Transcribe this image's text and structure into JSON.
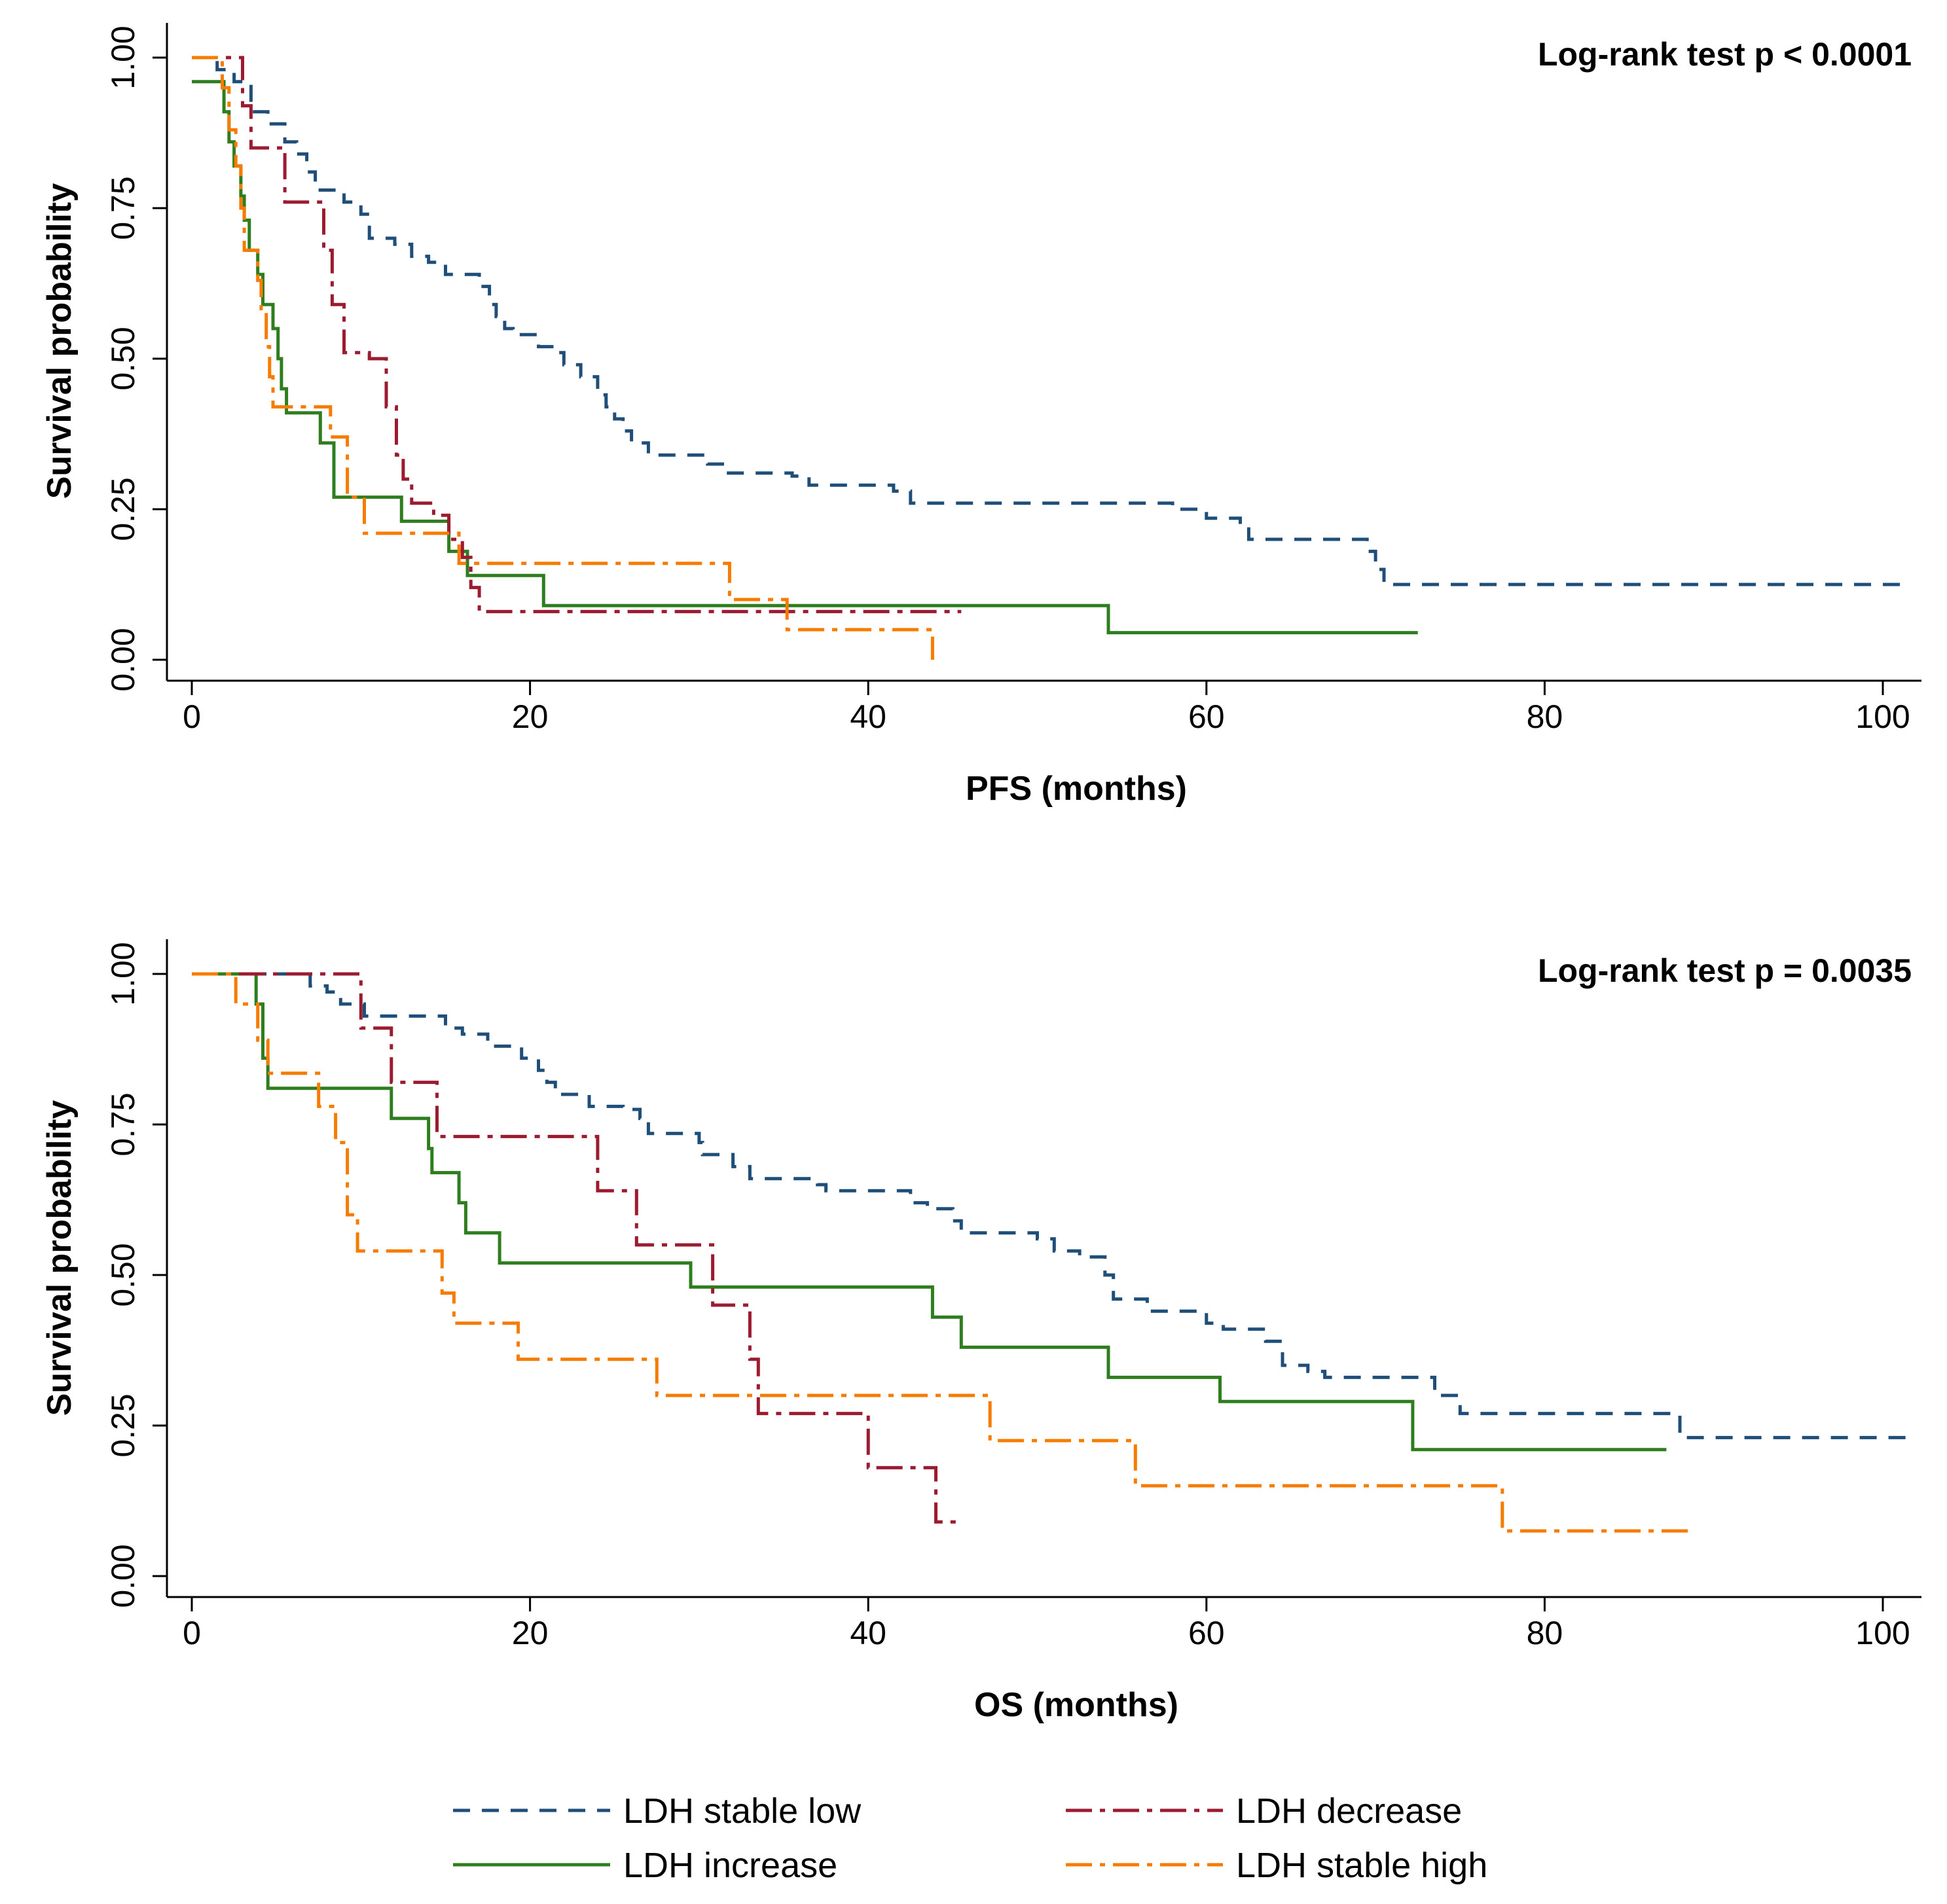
{
  "colors": {
    "stable_low": "#1f4e79",
    "increase": "#2e7d1e",
    "decrease": "#9b1b30",
    "stable_high": "#f57c00",
    "axis": "#000000"
  },
  "legend": {
    "items": [
      {
        "key": "stable_low",
        "label": "LDH stable low"
      },
      {
        "key": "decrease",
        "label": "LDH decrease"
      },
      {
        "key": "increase",
        "label": "LDH increase"
      },
      {
        "key": "stable_high",
        "label": "LDH stable high"
      }
    ]
  },
  "chart_data": [
    {
      "type": "line",
      "subtype": "kaplan-meier",
      "xlabel": "PFS (months)",
      "ylabel": "Survival probability",
      "annotation": "Log-rank test p < 0.0001",
      "xlim": [
        0,
        102
      ],
      "ylim": [
        0,
        1
      ],
      "xticks": [
        0,
        20,
        40,
        60,
        80,
        100
      ],
      "yticks": [
        0,
        0.25,
        0.5,
        0.75,
        1
      ],
      "yticklabels": [
        "0.00",
        "0.25",
        "0.50",
        "0.75",
        "1.00"
      ],
      "series": [
        {
          "key": "stable_low",
          "name": "LDH stable low",
          "points": [
            [
              0,
              1.0
            ],
            [
              1.5,
              0.98
            ],
            [
              2.5,
              0.96
            ],
            [
              3.5,
              0.91
            ],
            [
              4.5,
              0.89
            ],
            [
              5.5,
              0.86
            ],
            [
              6.2,
              0.84
            ],
            [
              6.8,
              0.81
            ],
            [
              7.3,
              0.78
            ],
            [
              9,
              0.76
            ],
            [
              10,
              0.74
            ],
            [
              10.5,
              0.7
            ],
            [
              12,
              0.69
            ],
            [
              13,
              0.67
            ],
            [
              14,
              0.66
            ],
            [
              15,
              0.64
            ],
            [
              17,
              0.62
            ],
            [
              17.6,
              0.59
            ],
            [
              18,
              0.57
            ],
            [
              18.5,
              0.55
            ],
            [
              19,
              0.54
            ],
            [
              20.5,
              0.52
            ],
            [
              21.5,
              0.51
            ],
            [
              22,
              0.49
            ],
            [
              23,
              0.47
            ],
            [
              24,
              0.44
            ],
            [
              24.5,
              0.42
            ],
            [
              25,
              0.4
            ],
            [
              25.5,
              0.38
            ],
            [
              26,
              0.36
            ],
            [
              27,
              0.34
            ],
            [
              30.5,
              0.325
            ],
            [
              31.5,
              0.31
            ],
            [
              35.5,
              0.305
            ],
            [
              36.5,
              0.29
            ],
            [
              41.5,
              0.28
            ],
            [
              42.5,
              0.26
            ],
            [
              58,
              0.25
            ],
            [
              60,
              0.235
            ],
            [
              62,
              0.225
            ],
            [
              62.5,
              0.2
            ],
            [
              69.5,
              0.18
            ],
            [
              70,
              0.15
            ],
            [
              70.5,
              0.125
            ],
            [
              101.5,
              0.125
            ]
          ]
        },
        {
          "key": "increase",
          "name": "LDH increase",
          "points": [
            [
              0,
              0.96
            ],
            [
              1.9,
              0.91
            ],
            [
              2.2,
              0.86
            ],
            [
              2.5,
              0.82
            ],
            [
              2.9,
              0.77
            ],
            [
              3.1,
              0.73
            ],
            [
              3.4,
              0.68
            ],
            [
              3.9,
              0.64
            ],
            [
              4.2,
              0.59
            ],
            [
              4.8,
              0.55
            ],
            [
              5.1,
              0.5
            ],
            [
              5.3,
              0.45
            ],
            [
              5.6,
              0.41
            ],
            [
              7.6,
              0.36
            ],
            [
              8.4,
              0.27
            ],
            [
              12.4,
              0.23
            ],
            [
              15.2,
              0.18
            ],
            [
              16.3,
              0.14
            ],
            [
              20.8,
              0.09
            ],
            [
              54.2,
              0.045
            ],
            [
              72.5,
              0.045
            ]
          ]
        },
        {
          "key": "decrease",
          "name": "LDH decrease",
          "points": [
            [
              0,
              1.0
            ],
            [
              1.8,
              1.0
            ],
            [
              3,
              0.92
            ],
            [
              3.5,
              0.85
            ],
            [
              5.5,
              0.76
            ],
            [
              7.8,
              0.68
            ],
            [
              8.3,
              0.59
            ],
            [
              9,
              0.51
            ],
            [
              10.5,
              0.5
            ],
            [
              11.5,
              0.42
            ],
            [
              12.1,
              0.34
            ],
            [
              12.5,
              0.3
            ],
            [
              13,
              0.26
            ],
            [
              14.3,
              0.24
            ],
            [
              15.2,
              0.2
            ],
            [
              16,
              0.17
            ],
            [
              16.5,
              0.12
            ],
            [
              17,
              0.08
            ],
            [
              45.5,
              0.08
            ]
          ]
        },
        {
          "key": "stable_high",
          "name": "LDH stable high",
          "points": [
            [
              0,
              1.0
            ],
            [
              1.8,
              0.95
            ],
            [
              2.2,
              0.88
            ],
            [
              2.6,
              0.82
            ],
            [
              2.9,
              0.75
            ],
            [
              3.1,
              0.68
            ],
            [
              3.9,
              0.63
            ],
            [
              4.1,
              0.58
            ],
            [
              4.4,
              0.52
            ],
            [
              4.6,
              0.47
            ],
            [
              4.8,
              0.42
            ],
            [
              8.2,
              0.37
            ],
            [
              9.2,
              0.27
            ],
            [
              10.2,
              0.21
            ],
            [
              15.8,
              0.16
            ],
            [
              31.8,
              0.1
            ],
            [
              35.2,
              0.05
            ],
            [
              43.8,
              0.0
            ]
          ]
        }
      ]
    },
    {
      "type": "line",
      "subtype": "kaplan-meier",
      "xlabel": "OS (months)",
      "ylabel": "Survival probability",
      "annotation": "Log-rank test p = 0.0035",
      "xlim": [
        0,
        102
      ],
      "ylim": [
        0,
        1
      ],
      "xticks": [
        0,
        20,
        40,
        60,
        80,
        100
      ],
      "yticks": [
        0,
        0.25,
        0.5,
        0.75,
        1
      ],
      "yticklabels": [
        "0.00",
        "0.25",
        "0.50",
        "0.75",
        "1.00"
      ],
      "series": [
        {
          "key": "stable_low",
          "name": "LDH stable low",
          "points": [
            [
              0,
              1.0
            ],
            [
              7,
              0.98
            ],
            [
              8,
              0.97
            ],
            [
              8.8,
              0.95
            ],
            [
              10.2,
              0.93
            ],
            [
              15,
              0.91
            ],
            [
              16,
              0.9
            ],
            [
              17.5,
              0.88
            ],
            [
              19.5,
              0.86
            ],
            [
              20.5,
              0.84
            ],
            [
              21,
              0.82
            ],
            [
              21.5,
              0.8
            ],
            [
              23.5,
              0.78
            ],
            [
              25.5,
              0.775
            ],
            [
              26.5,
              0.76
            ],
            [
              27,
              0.735
            ],
            [
              30,
              0.72
            ],
            [
              30.2,
              0.7
            ],
            [
              32,
              0.68
            ],
            [
              33,
              0.66
            ],
            [
              37,
              0.65
            ],
            [
              37.5,
              0.64
            ],
            [
              42.5,
              0.62
            ],
            [
              43.5,
              0.61
            ],
            [
              45,
              0.59
            ],
            [
              45.5,
              0.57
            ],
            [
              50,
              0.56
            ],
            [
              51,
              0.54
            ],
            [
              52.5,
              0.53
            ],
            [
              54,
              0.5
            ],
            [
              54.5,
              0.46
            ],
            [
              56.5,
              0.44
            ],
            [
              60,
              0.42
            ],
            [
              61,
              0.41
            ],
            [
              63.5,
              0.39
            ],
            [
              64.5,
              0.35
            ],
            [
              66,
              0.34
            ],
            [
              67,
              0.33
            ],
            [
              73.5,
              0.3
            ],
            [
              75,
              0.27
            ],
            [
              88,
              0.23
            ],
            [
              101.5,
              0.23
            ]
          ]
        },
        {
          "key": "increase",
          "name": "LDH increase",
          "points": [
            [
              0,
              1.0
            ],
            [
              3.8,
              0.95
            ],
            [
              4.2,
              0.86
            ],
            [
              4.5,
              0.81
            ],
            [
              11.8,
              0.76
            ],
            [
              14,
              0.71
            ],
            [
              14.2,
              0.67
            ],
            [
              15.8,
              0.62
            ],
            [
              16.2,
              0.57
            ],
            [
              18.2,
              0.52
            ],
            [
              29.5,
              0.48
            ],
            [
              43.8,
              0.43
            ],
            [
              45.5,
              0.38
            ],
            [
              54.2,
              0.33
            ],
            [
              60.8,
              0.29
            ],
            [
              72.2,
              0.21
            ],
            [
              87.2,
              0.21
            ]
          ]
        },
        {
          "key": "decrease",
          "name": "LDH decrease",
          "points": [
            [
              0,
              1.0
            ],
            [
              10,
              0.91
            ],
            [
              11.8,
              0.82
            ],
            [
              14.5,
              0.73
            ],
            [
              24,
              0.64
            ],
            [
              26.3,
              0.55
            ],
            [
              30.8,
              0.45
            ],
            [
              33,
              0.36
            ],
            [
              33.5,
              0.27
            ],
            [
              40,
              0.18
            ],
            [
              44,
              0.09
            ],
            [
              45.5,
              0.09
            ]
          ]
        },
        {
          "key": "stable_high",
          "name": "LDH stable high",
          "points": [
            [
              0,
              1.0
            ],
            [
              2.6,
              0.95
            ],
            [
              3.9,
              0.89
            ],
            [
              4.5,
              0.835
            ],
            [
              7.5,
              0.78
            ],
            [
              8.5,
              0.72
            ],
            [
              9.2,
              0.6
            ],
            [
              9.8,
              0.54
            ],
            [
              14.8,
              0.47
            ],
            [
              15.5,
              0.42
            ],
            [
              19.3,
              0.36
            ],
            [
              27.5,
              0.3
            ],
            [
              47.2,
              0.225
            ],
            [
              55.8,
              0.15
            ],
            [
              77.5,
              0.075
            ],
            [
              88.5,
              0.075
            ]
          ]
        }
      ]
    }
  ]
}
